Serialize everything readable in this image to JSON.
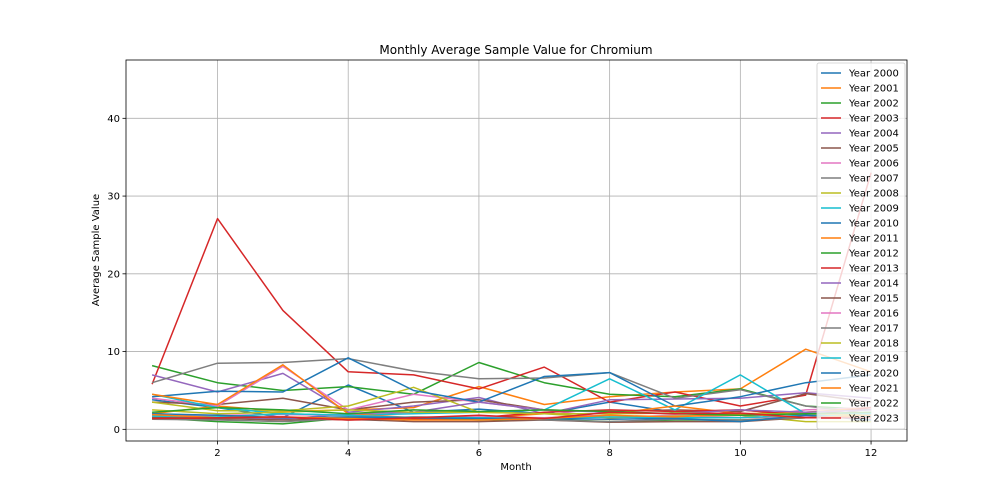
{
  "chart_data": {
    "type": "line",
    "title": "Monthly Average Sample Value for Chromium",
    "xlabel": "Month",
    "ylabel": "Average Sample Value",
    "xlim": [
      0.6,
      12.55
    ],
    "ylim": [
      -1.5,
      47.5
    ],
    "xticks": [
      2,
      4,
      6,
      8,
      10,
      12
    ],
    "yticks": [
      0,
      10,
      20,
      30,
      40
    ],
    "grid": true,
    "legend_position": "top-right",
    "x": [
      1,
      2,
      3,
      4,
      5,
      6,
      7,
      8,
      9,
      10,
      11,
      12
    ],
    "series": [
      {
        "name": "Year 2000",
        "color": "#1f77b4",
        "values": [
          3.8,
          2.8,
          1.5,
          5.7,
          2.2,
          2.6,
          2.0,
          3.5,
          2.2,
          2.5,
          1.8,
          2.2
        ]
      },
      {
        "name": "Year 2001",
        "color": "#ff7f0e",
        "values": [
          2.0,
          3.0,
          2.3,
          2.5,
          2.8,
          5.5,
          3.2,
          4.2,
          4.8,
          5.2,
          10.3,
          7.4
        ]
      },
      {
        "name": "Year 2002",
        "color": "#2ca02c",
        "values": [
          8.2,
          6.0,
          5.0,
          5.5,
          4.5,
          8.6,
          6.0,
          4.5,
          4.2,
          5.2,
          3.0,
          2.5
        ]
      },
      {
        "name": "Year 2003",
        "color": "#d62728",
        "values": [
          5.8,
          27.1,
          15.3,
          7.4,
          7.0,
          5.2,
          8.0,
          3.5,
          4.8,
          3.0,
          4.4,
          33.0
        ]
      },
      {
        "name": "Year 2004",
        "color": "#9467bd",
        "values": [
          7.0,
          4.8,
          7.2,
          2.2,
          3.0,
          4.1,
          2.0,
          3.8,
          3.9,
          4.0,
          4.7,
          4.0
        ]
      },
      {
        "name": "Year 2005",
        "color": "#8c564b",
        "values": [
          3.5,
          3.2,
          4.0,
          2.5,
          3.5,
          3.8,
          2.5,
          2.3,
          2.5,
          2.3,
          4.6,
          3.5
        ]
      },
      {
        "name": "Year 2006",
        "color": "#e377c2",
        "values": [
          4.0,
          3.0,
          8.1,
          2.5,
          4.5,
          3.5,
          2.5,
          1.5,
          1.8,
          1.5,
          2.5,
          2.8
        ]
      },
      {
        "name": "Year 2007",
        "color": "#7f7f7f",
        "values": [
          6.0,
          8.5,
          8.6,
          9.1,
          7.5,
          6.5,
          6.6,
          7.3,
          4.0,
          5.1,
          3.0,
          2.0
        ]
      },
      {
        "name": "Year 2008",
        "color": "#bcbd22",
        "values": [
          3.5,
          2.4,
          2.4,
          3.0,
          5.4,
          2.2,
          2.0,
          1.5,
          1.7,
          1.8,
          1.0,
          1.0
        ]
      },
      {
        "name": "Year 2009",
        "color": "#17becf",
        "values": [
          4.5,
          2.8,
          2.0,
          1.8,
          2.0,
          2.2,
          2.5,
          6.5,
          2.5,
          7.0,
          2.0,
          2.0
        ]
      },
      {
        "name": "Year 2010",
        "color": "#1f77b4",
        "values": [
          4.2,
          4.9,
          4.8,
          9.2,
          5.0,
          3.5,
          6.8,
          7.3,
          3.0,
          4.2,
          6.0,
          7.0
        ]
      },
      {
        "name": "Year 2011",
        "color": "#ff7f0e",
        "values": [
          4.5,
          3.2,
          8.3,
          2.0,
          1.5,
          1.5,
          2.0,
          2.0,
          3.0,
          2.0,
          2.2,
          2.8
        ]
      },
      {
        "name": "Year 2012",
        "color": "#2ca02c",
        "values": [
          1.5,
          1.0,
          0.7,
          1.5,
          1.5,
          1.2,
          1.3,
          1.0,
          1.2,
          1.2,
          1.5,
          1.5
        ]
      },
      {
        "name": "Year 2013",
        "color": "#d62728",
        "values": [
          1.4,
          1.3,
          1.5,
          1.2,
          1.3,
          1.5,
          2.2,
          2.5,
          2.3,
          2.5,
          1.8,
          2.8
        ]
      },
      {
        "name": "Year 2014",
        "color": "#9467bd",
        "values": [
          1.8,
          1.5,
          1.3,
          2.0,
          2.2,
          3.5,
          2.5,
          2.2,
          2.0,
          2.5,
          2.2,
          2.5
        ]
      },
      {
        "name": "Year 2015",
        "color": "#8c564b",
        "values": [
          1.6,
          1.4,
          1.2,
          1.3,
          1.0,
          1.0,
          1.2,
          0.9,
          1.0,
          1.0,
          1.5,
          1.5
        ]
      },
      {
        "name": "Year 2016",
        "color": "#e377c2",
        "values": [
          1.7,
          1.8,
          1.9,
          1.8,
          1.5,
          1.6,
          1.5,
          1.8,
          1.5,
          1.5,
          1.6,
          1.8
        ]
      },
      {
        "name": "Year 2017",
        "color": "#7f7f7f",
        "values": [
          1.3,
          1.2,
          1.0,
          1.4,
          1.6,
          1.5,
          1.2,
          1.0,
          1.3,
          1.2,
          1.5,
          1.5
        ]
      },
      {
        "name": "Year 2018",
        "color": "#bcbd22",
        "values": [
          2.5,
          2.0,
          2.2,
          2.5,
          2.2,
          2.2,
          2.0,
          2.0,
          2.1,
          2.0,
          2.0,
          1.8
        ]
      },
      {
        "name": "Year 2019",
        "color": "#17becf",
        "values": [
          1.7,
          1.6,
          2.0,
          1.8,
          1.5,
          1.5,
          1.4,
          1.6,
          1.5,
          1.5,
          1.8,
          1.6
        ]
      },
      {
        "name": "Year 2020",
        "color": "#1f77b4",
        "values": [
          2.0,
          1.8,
          1.5,
          1.6,
          1.5,
          1.4,
          1.4,
          1.3,
          1.4,
          1.0,
          1.8,
          1.2
        ]
      },
      {
        "name": "Year 2021",
        "color": "#ff7f0e",
        "values": [
          1.9,
          1.5,
          1.6,
          1.4,
          1.2,
          1.2,
          1.4,
          1.8,
          1.6,
          2.0,
          1.5,
          1.8
        ]
      },
      {
        "name": "Year 2022",
        "color": "#2ca02c",
        "values": [
          2.2,
          2.8,
          2.5,
          2.0,
          2.5,
          2.3,
          2.5,
          2.3,
          2.0,
          1.8,
          2.0,
          2.2
        ]
      },
      {
        "name": "Year 2023",
        "color": "#d62728",
        "values": [
          1.4,
          1.5,
          1.6,
          1.2,
          1.5,
          1.8,
          1.4,
          2.2,
          2.0,
          2.1,
          1.5,
          1.5
        ]
      }
    ]
  }
}
